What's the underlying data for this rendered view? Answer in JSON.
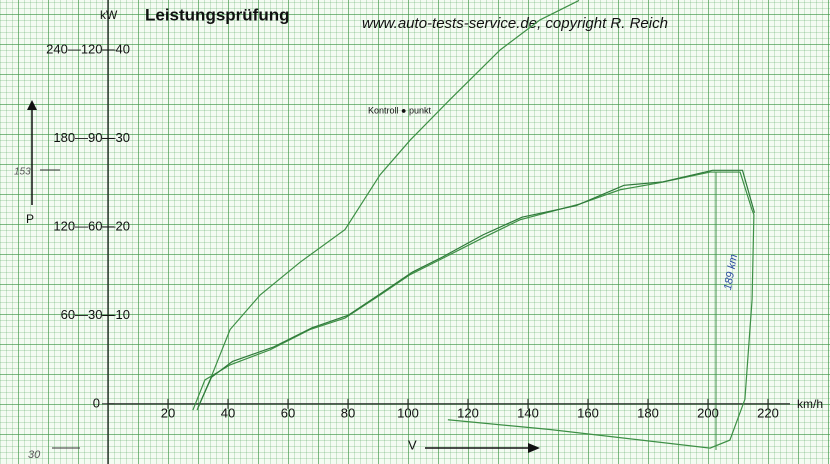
{
  "chart_data": {
    "type": "line",
    "title": "Leistungsprüfung",
    "subtitle": "www.auto-tests-service.de, copyright R. Reich",
    "y_label": "kW",
    "y_axis_symbol": "P",
    "x_label": "km/h",
    "annotations": [
      "Kontroll ● punkt",
      "153",
      "189 km",
      "30",
      "V"
    ],
    "xlim": [
      -36,
      240.67
    ],
    "ylim": [
      -6.8,
      45.65
    ],
    "xticks": [
      20,
      40,
      60,
      80,
      100,
      120,
      140,
      160,
      180,
      200,
      220
    ],
    "yticks": [
      0,
      {
        "value": 10,
        "label": "60—30—10"
      },
      {
        "value": 20,
        "label": "120—60—20"
      },
      {
        "value": 30,
        "label": "180—90—30"
      },
      {
        "value": 40,
        "label": "240—120—40"
      }
    ],
    "grid": true,
    "series": [
      {
        "color": "#3d8f45",
        "x": [
          29.7,
          34,
          40.7,
          50.7,
          64,
          79,
          90.7,
          100.7,
          114,
          130.7,
          144,
          157
        ],
        "values": [
          -0.7,
          2.7,
          8.4,
          12.3,
          16,
          19.7,
          25.9,
          29.8,
          34.4,
          40,
          43.4,
          45.6
        ]
      },
      {
        "color": "#3d8f45",
        "x": [
          28.3,
          32.3,
          40.7,
          54,
          67.3,
          79,
          90.7,
          100.7,
          110.7,
          124,
          137.3,
          157.3,
          170.7,
          184,
          200.7,
          210.7,
          214.7,
          215.3
        ],
        "values": [
          -0.7,
          2.7,
          4.4,
          6.1,
          8.4,
          9.7,
          12.3,
          14.6,
          16.3,
          18.6,
          20.8,
          22.6,
          24.2,
          25,
          26.2,
          26.2,
          21.9,
          21.4
        ]
      },
      {
        "color": "#2f7a3a",
        "x": [
          30,
          34.5,
          41.5,
          55,
          68,
          80,
          91.5,
          101.5,
          111.5,
          125,
          138,
          156,
          172,
          185,
          201.5,
          211.5,
          215,
          215.5
        ],
        "values": [
          -0.4,
          3,
          4.8,
          6.4,
          8.6,
          10,
          12.6,
          14.9,
          16.6,
          19.1,
          21.1,
          22.4,
          24.7,
          25.1,
          26.4,
          26.4,
          22.2,
          21.6
        ]
      },
      {
        "color": "#3d8f45",
        "x": [
          113.3,
          147.3,
          200.7,
          207.3,
          212.3,
          214.7,
          215.3
        ],
        "values": [
          -1.8,
          -2.9,
          -5,
          -4.1,
          0.5,
          11.8,
          21.4
        ]
      }
    ]
  }
}
